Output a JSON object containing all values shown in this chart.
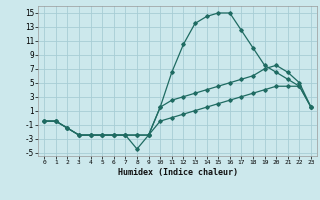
{
  "xlabel": "Humidex (Indice chaleur)",
  "xlim": [
    -0.5,
    23.5
  ],
  "ylim": [
    -5.5,
    16.0
  ],
  "xticks": [
    0,
    1,
    2,
    3,
    4,
    5,
    6,
    7,
    8,
    9,
    10,
    11,
    12,
    13,
    14,
    15,
    16,
    17,
    18,
    19,
    20,
    21,
    22,
    23
  ],
  "yticks": [
    -5,
    -3,
    -1,
    1,
    3,
    5,
    7,
    9,
    11,
    13,
    15
  ],
  "background_color": "#cce8ec",
  "grid_color": "#a8cdd5",
  "line_color": "#1f6b62",
  "line1_x": [
    0,
    1,
    2,
    3,
    4,
    5,
    6,
    7,
    8,
    9,
    10,
    11,
    12,
    13,
    14,
    15,
    16,
    17,
    18,
    19,
    20,
    21,
    22,
    23
  ],
  "line1_y": [
    -0.5,
    -0.5,
    -1.5,
    -2.5,
    -2.5,
    -2.5,
    -2.5,
    -2.5,
    -4.5,
    -2.5,
    1.5,
    6.5,
    10.5,
    13.5,
    14.5,
    15.0,
    15.0,
    12.5,
    10.0,
    7.5,
    6.5,
    5.5,
    4.5,
    1.5
  ],
  "line2_x": [
    0,
    1,
    2,
    3,
    4,
    5,
    6,
    7,
    8,
    9,
    10,
    11,
    12,
    13,
    14,
    15,
    16,
    17,
    18,
    19,
    20,
    21,
    22,
    23
  ],
  "line2_y": [
    -0.5,
    -0.5,
    -1.5,
    -2.5,
    -2.5,
    -2.5,
    -2.5,
    -2.5,
    -2.5,
    -2.5,
    1.5,
    2.5,
    3.0,
    3.5,
    4.0,
    4.5,
    5.0,
    5.5,
    6.0,
    7.0,
    7.5,
    6.5,
    5.0,
    1.5
  ],
  "line3_x": [
    0,
    1,
    2,
    3,
    4,
    5,
    6,
    7,
    8,
    9,
    10,
    11,
    12,
    13,
    14,
    15,
    16,
    17,
    18,
    19,
    20,
    21,
    22,
    23
  ],
  "line3_y": [
    -0.5,
    -0.5,
    -1.5,
    -2.5,
    -2.5,
    -2.5,
    -2.5,
    -2.5,
    -2.5,
    -2.5,
    -0.5,
    0.0,
    0.5,
    1.0,
    1.5,
    2.0,
    2.5,
    3.0,
    3.5,
    4.0,
    4.5,
    4.5,
    4.5,
    1.5
  ]
}
